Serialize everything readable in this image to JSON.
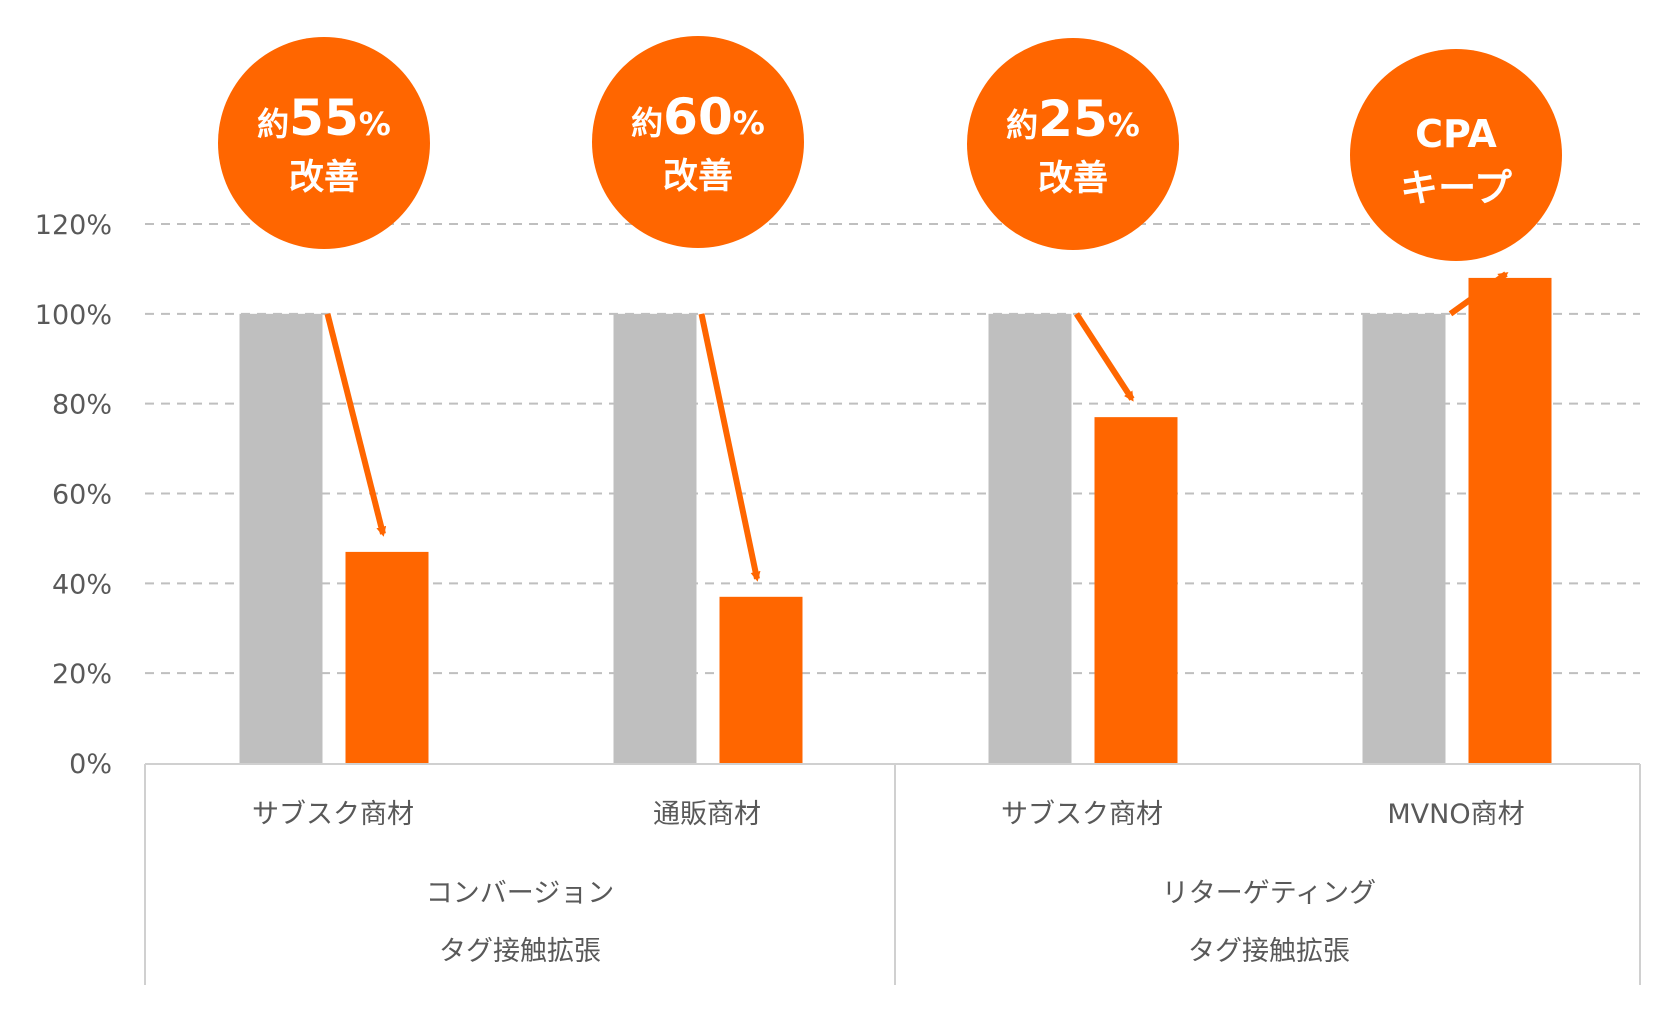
{
  "chart_data": {
    "type": "bar",
    "title": "",
    "xlabel": "",
    "ylabel": "",
    "ylim": [
      0,
      120
    ],
    "yticks": [
      0,
      20,
      40,
      60,
      80,
      100,
      120
    ],
    "ytick_format": "%",
    "grid": true,
    "legend": "none",
    "colors": {
      "before": "#bfbfbf",
      "after": "#ff6600",
      "bubble": "#ff6600",
      "grid": "#bfbfbf",
      "axis": "#d0d0d0",
      "text": "#595959"
    },
    "categories": [
      "サブスク商材",
      "通販商材",
      "サブスク商材",
      "MVNO商材"
    ],
    "groups": [
      {
        "lines": [
          "コンバージョン",
          "タグ接触拡張"
        ],
        "categories": [
          0,
          1
        ]
      },
      {
        "lines": [
          "リターゲティング",
          "タグ接触拡張"
        ],
        "categories": [
          2,
          3
        ]
      }
    ],
    "series": [
      {
        "values": [
          100,
          100,
          100,
          100
        ]
      },
      {
        "values": [
          47,
          37,
          77,
          108
        ]
      }
    ],
    "annotations": [
      {
        "category": 0,
        "prefix": "約",
        "number": "55",
        "suffix": "%",
        "line2": "改善"
      },
      {
        "category": 1,
        "prefix": "約",
        "number": "60",
        "suffix": "%",
        "line2": "改善"
      },
      {
        "category": 2,
        "prefix": "約",
        "number": "25",
        "suffix": "%",
        "line2": "改善"
      },
      {
        "category": 3,
        "prefix": "",
        "number": "CPA",
        "suffix": "",
        "line2": "キープ"
      }
    ]
  }
}
